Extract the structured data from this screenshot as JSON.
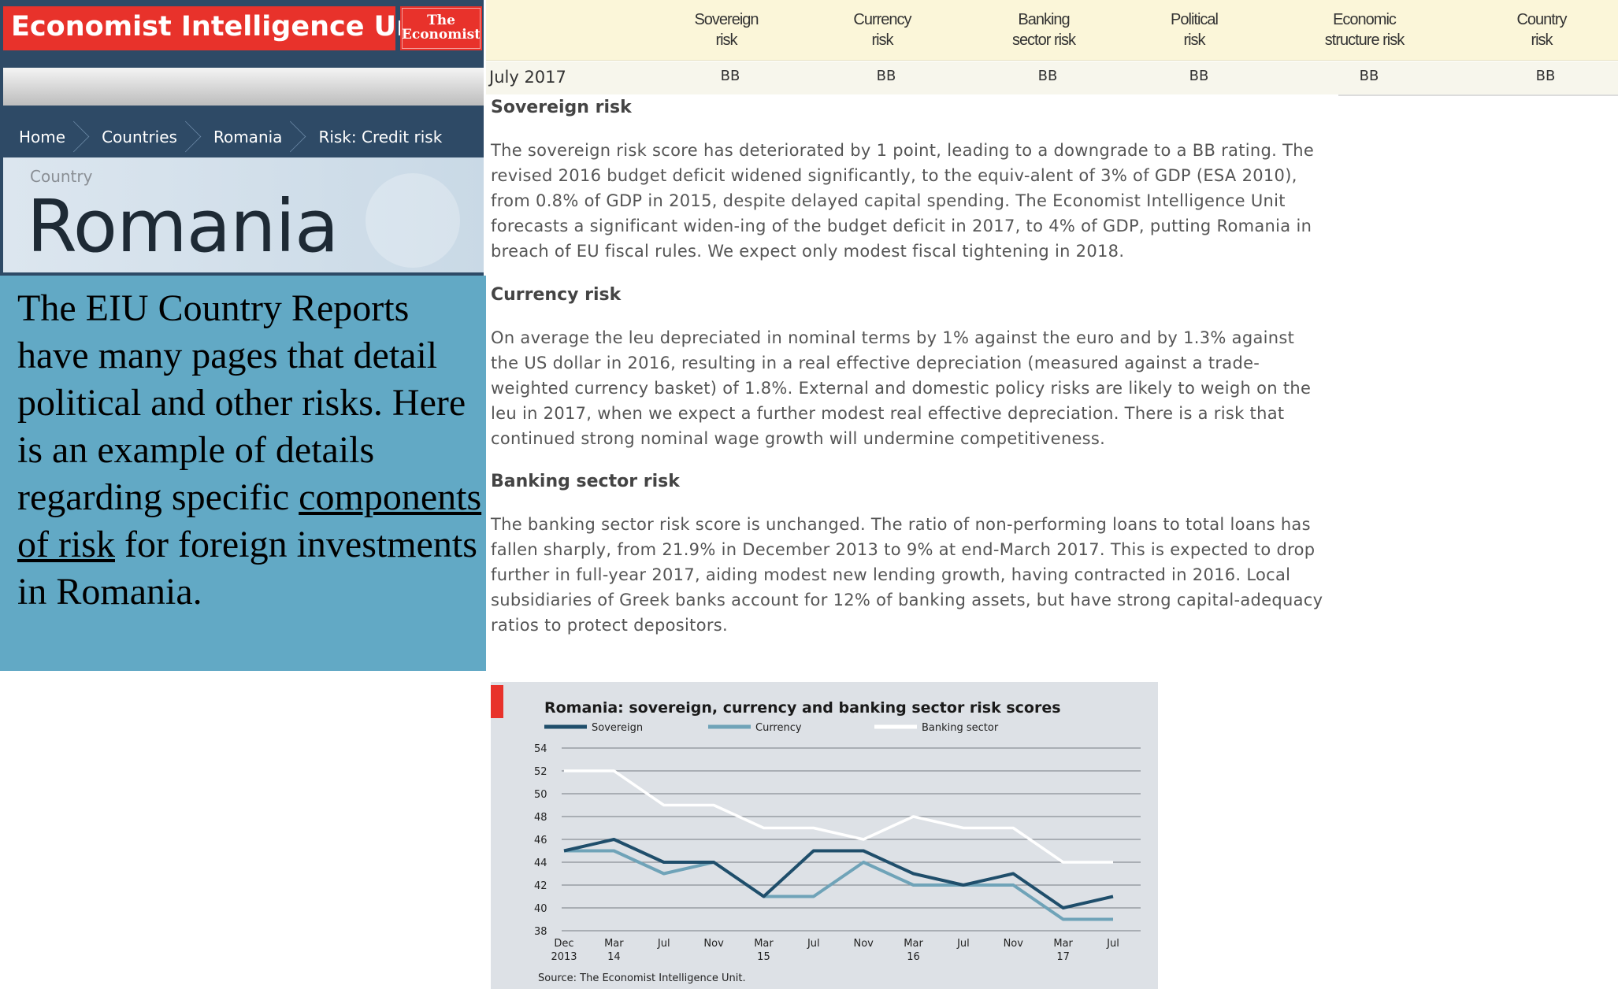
{
  "header": {
    "brand": "Economist Intelligence Unit",
    "logo_line1": "The",
    "logo_line2": "Economist"
  },
  "breadcrumb": [
    "Home",
    "Countries",
    "Romania",
    "Risk: Credit risk"
  ],
  "country": {
    "label": "Country",
    "name": "Romania"
  },
  "note": {
    "text_before": "The EIU Country Reports have many pages that detail political and other risks. Here is an example of details regarding specific ",
    "link_text": "components of risk",
    "text_after": " for foreign investments in Romania."
  },
  "ratings": {
    "columns": [
      {
        "line1": "Sovereign",
        "line2": "risk"
      },
      {
        "line1": "Currency",
        "line2": "risk"
      },
      {
        "line1": "Banking",
        "line2": "sector risk"
      },
      {
        "line1": "Political",
        "line2": "risk"
      },
      {
        "line1": "Economic",
        "line2": "structure risk"
      },
      {
        "line1": "Country",
        "line2": "risk"
      }
    ],
    "row_label": "July 2017",
    "values": [
      "BB",
      "BB",
      "BB",
      "BB",
      "BB",
      "BB"
    ]
  },
  "sections": [
    {
      "heading": "Sovereign risk",
      "body": "The sovereign risk score has deteriorated by 1 point, leading to a downgrade to a BB rating. The revised 2016 budget deficit widened significantly, to the equiv-alent of 3% of GDP (ESA 2010), from 0.8% of GDP in 2015, despite delayed capital spending. The Economist Intelligence Unit forecasts a significant widen-ing of the budget deficit in 2017, to 4% of GDP, putting Romania in breach of EU fiscal rules. We expect only modest fiscal tightening in 2018."
    },
    {
      "heading": "Currency risk",
      "body": "On average the leu depreciated in nominal terms by 1% against the euro and by 1.3% against the US dollar in 2016, resulting in a real effective depreciation (measured against a trade-weighted currency basket) of 1.8%. External and domestic policy risks are likely to weigh on the leu in 2017, when we expect a further modest real effective depreciation. There is a risk that continued strong nominal wage growth will undermine competitiveness."
    },
    {
      "heading": "Banking sector risk",
      "body": "The banking sector risk score is unchanged. The ratio of non-performing loans to total loans has fallen sharply, from 21.9% in December 2013 to 9% at end-March 2017. This is expected to drop further in full-year 2017, aiding modest new lending growth, having contracted in 2016. Local subsidiaries of Greek banks account for 12% of banking assets, but have strong capital-adequacy ratios to protect depositors."
    }
  ],
  "chart_data": {
    "type": "line",
    "title": "Romania: sovereign, currency and banking sector risk scores",
    "source": "Source: The Economist Intelligence Unit.",
    "x_labels": [
      [
        "Dec",
        "2013"
      ],
      [
        "Mar",
        "14"
      ],
      [
        "Jul",
        ""
      ],
      [
        "Nov",
        ""
      ],
      [
        "Mar",
        "15"
      ],
      [
        "Jul",
        ""
      ],
      [
        "Nov",
        ""
      ],
      [
        "Mar",
        "16"
      ],
      [
        "Jul",
        ""
      ],
      [
        "Nov",
        ""
      ],
      [
        "Mar",
        "17"
      ],
      [
        "Jul",
        ""
      ]
    ],
    "ylim": [
      38,
      54
    ],
    "y_ticks": [
      38,
      40,
      42,
      44,
      46,
      48,
      50,
      52,
      54
    ],
    "grid": true,
    "legend_position": "top",
    "series": [
      {
        "name": "Sovereign",
        "color": "#1f4e6b",
        "values": [
          45,
          46,
          44,
          44,
          41,
          45,
          45,
          43,
          42,
          43,
          40,
          41
        ]
      },
      {
        "name": "Currency",
        "color": "#6fa3b8",
        "values": [
          45,
          45,
          43,
          44,
          41,
          41,
          44,
          42,
          42,
          42,
          39,
          39
        ]
      },
      {
        "name": "Banking sector",
        "color": "#ffffff",
        "values": [
          52,
          52,
          49,
          49,
          47,
          47,
          46,
          48,
          47,
          47,
          44,
          44
        ]
      }
    ],
    "accent_color": "#e8322b"
  }
}
